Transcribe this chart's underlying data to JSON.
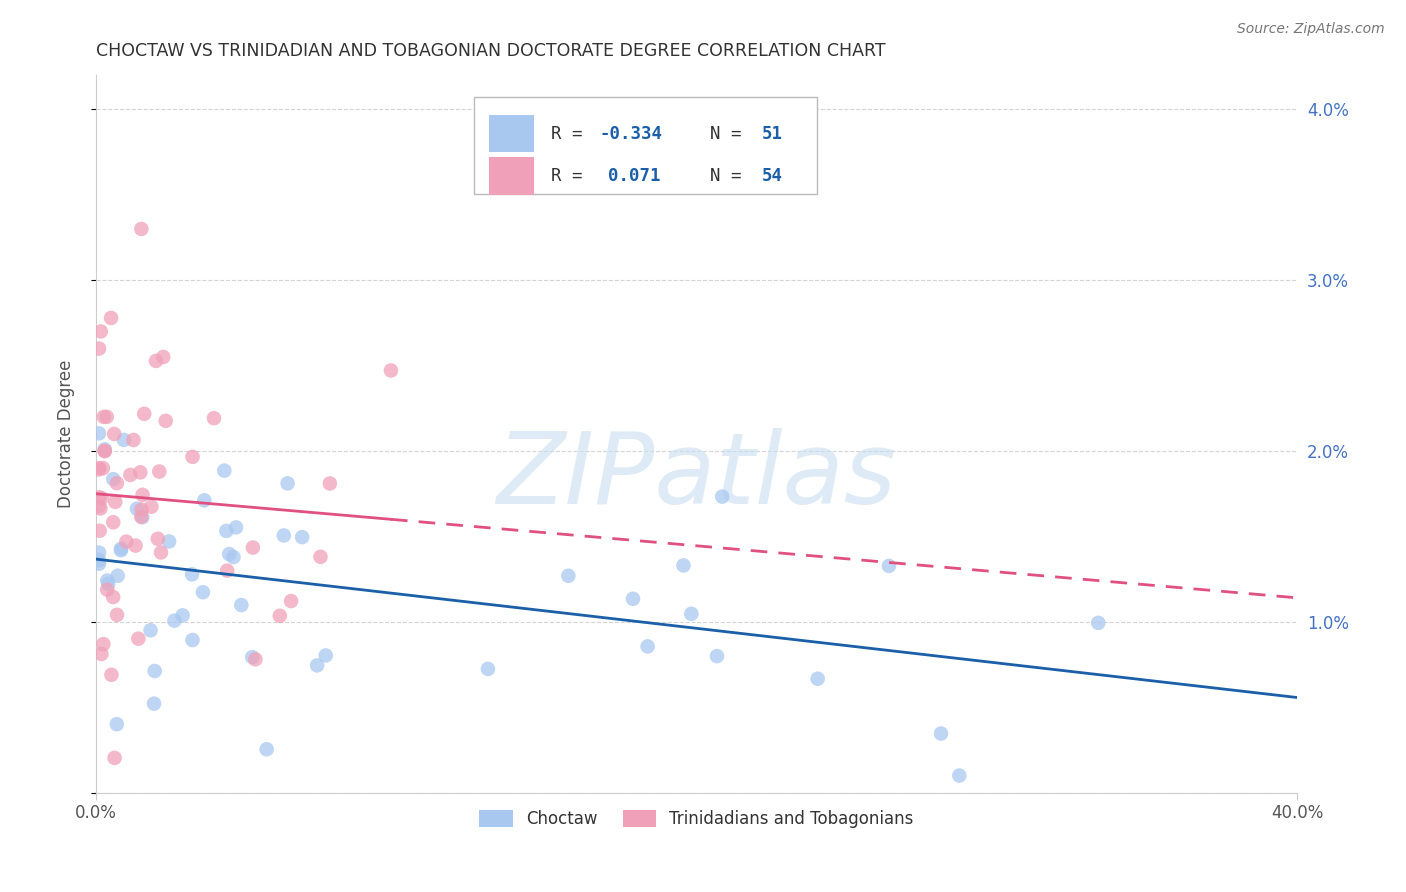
{
  "title": "CHOCTAW VS TRINIDADIAN AND TOBAGONIAN DOCTORATE DEGREE CORRELATION CHART",
  "source": "Source: ZipAtlas.com",
  "ylabel": "Doctorate Degree",
  "x_min": 0.0,
  "x_max": 0.4,
  "y_min": 0.0,
  "y_max": 0.042,
  "y_ticks": [
    0.0,
    0.01,
    0.02,
    0.03,
    0.04
  ],
  "blue_R": -0.334,
  "blue_N": 51,
  "pink_R": 0.071,
  "pink_N": 54,
  "blue_color": "#a8c8f0",
  "pink_color": "#f0a0b8",
  "blue_line_color": "#1a5fa8",
  "pink_line_color": "#e05080",
  "watermark_color": "#c8dff0",
  "background_color": "#ffffff",
  "grid_color": "#d0d0d0",
  "legend_label_blue": "Choctaw",
  "legend_label_pink": "Trinidadians and Tobagonians",
  "title_color": "#333333",
  "source_color": "#777777",
  "axis_label_color": "#555555",
  "right_tick_color": "#4472C4"
}
